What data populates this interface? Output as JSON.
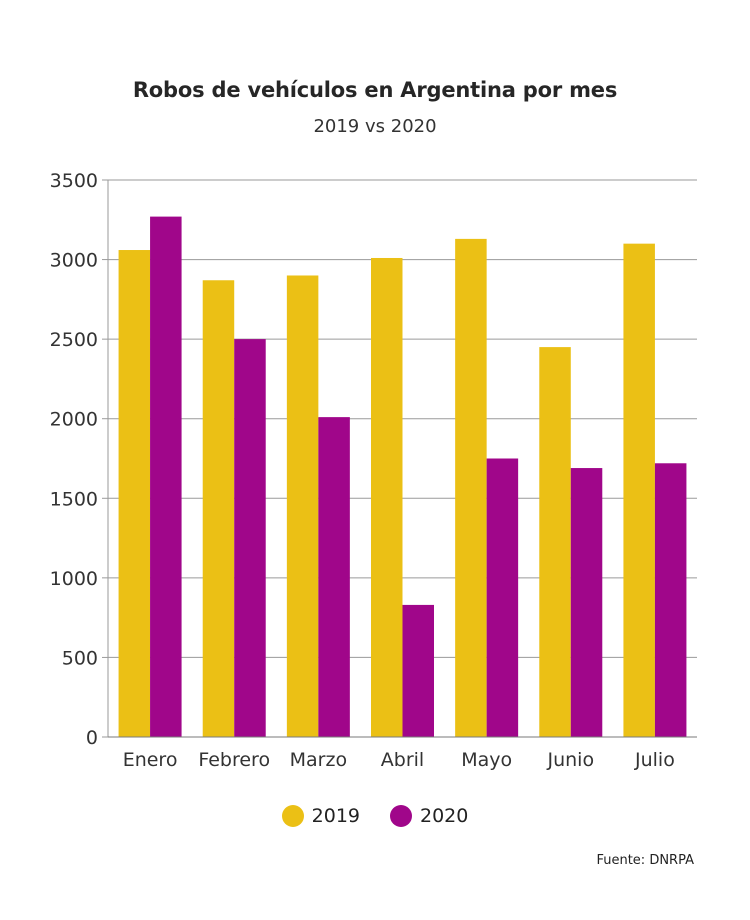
{
  "chart_data": {
    "type": "bar",
    "title": "Robos de vehículos en Argentina por mes",
    "subtitle": "2019 vs 2020",
    "xlabel": "",
    "ylabel": "",
    "categories": [
      "Enero",
      "Febrero",
      "Marzo",
      "Abril",
      "Mayo",
      "Junio",
      "Julio"
    ],
    "series": [
      {
        "name": "2019",
        "color": "#EBC015",
        "values": [
          3060,
          2870,
          2900,
          3010,
          3130,
          2450,
          3100
        ]
      },
      {
        "name": "2020",
        "color": "#A0068A",
        "values": [
          3270,
          2500,
          2010,
          830,
          1750,
          1690,
          1720
        ]
      }
    ],
    "ylim": [
      0,
      3500
    ],
    "yticks": [
      0,
      500,
      1000,
      1500,
      2000,
      2500,
      3000,
      3500
    ],
    "grid": true,
    "legend": "bottom-center",
    "source": "Fuente: DNRPA"
  }
}
